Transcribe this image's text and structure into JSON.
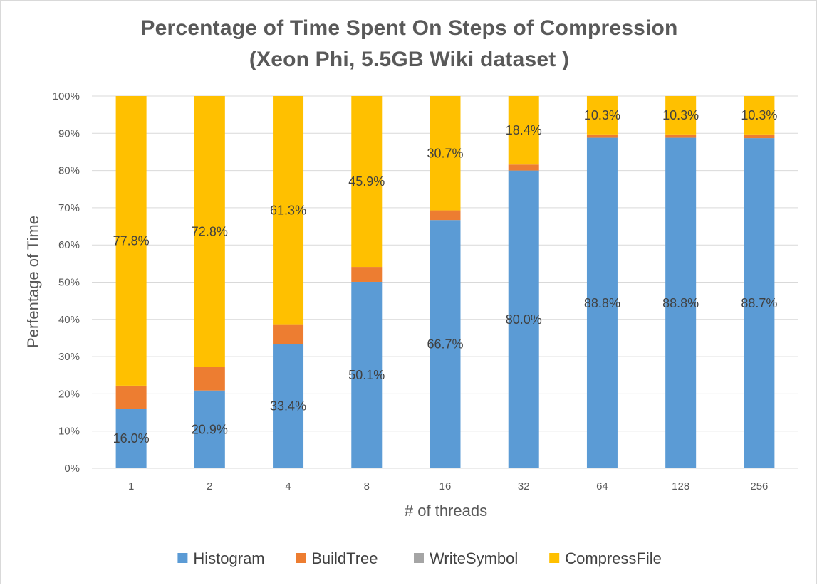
{
  "chart_data": {
    "type": "bar",
    "stacked": true,
    "title": "Percentage of Time Spent On Steps of Compression",
    "subtitle": "(Xeon Phi, 5.5GB Wiki dataset )",
    "xlabel": "# of threads",
    "ylabel": "Perfentage of Time",
    "categories": [
      "1",
      "2",
      "4",
      "8",
      "16",
      "32",
      "64",
      "128",
      "256"
    ],
    "ylim": [
      0,
      100
    ],
    "yticks": [
      "0%",
      "10%",
      "20%",
      "30%",
      "40%",
      "50%",
      "60%",
      "70%",
      "80%",
      "90%",
      "100%"
    ],
    "grid": true,
    "legend_position": "bottom",
    "series": [
      {
        "name": "Histogram",
        "color": "#5b9bd5",
        "values": [
          16.0,
          20.9,
          33.4,
          50.1,
          66.7,
          80.0,
          88.8,
          88.8,
          88.7
        ],
        "labels": [
          "16.0%",
          "20.9%",
          "33.4%",
          "50.1%",
          "66.7%",
          "80.0%",
          "88.8%",
          "88.8%",
          "88.7%"
        ]
      },
      {
        "name": "BuildTree",
        "color": "#ed7d31",
        "values": [
          6.2,
          6.3,
          5.3,
          4.0,
          2.6,
          1.6,
          0.9,
          0.9,
          1.0
        ]
      },
      {
        "name": "WriteSymbol",
        "color": "#a5a5a5",
        "values": [
          0.0,
          0.0,
          0.0,
          0.0,
          0.0,
          0.0,
          0.0,
          0.0,
          0.0
        ]
      },
      {
        "name": "CompressFile",
        "color": "#ffc000",
        "values": [
          77.8,
          72.8,
          61.3,
          45.9,
          30.7,
          18.4,
          10.3,
          10.3,
          10.3
        ],
        "labels": [
          "77.8%",
          "72.8%",
          "61.3%",
          "45.9%",
          "30.7%",
          "18.4%",
          "10.3%",
          "10.3%",
          "10.3%"
        ]
      }
    ]
  }
}
